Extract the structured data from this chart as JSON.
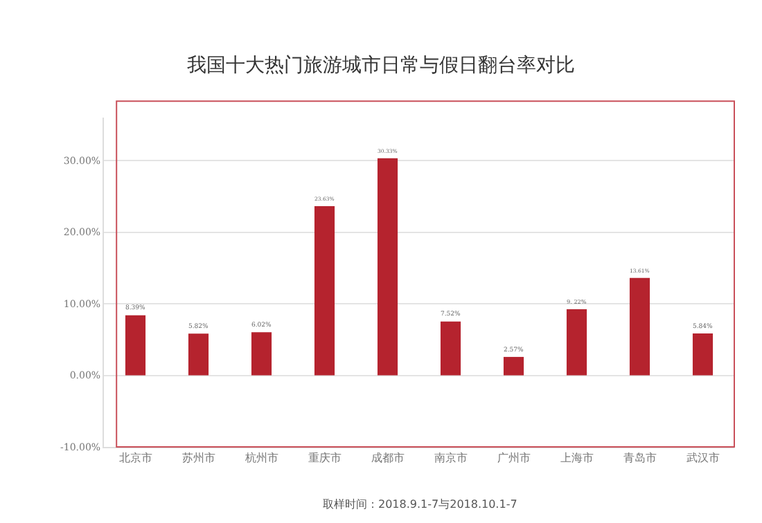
{
  "chart_data": {
    "type": "bar",
    "title": "我国十大热门旅游城市日常与假日翻台率对比",
    "categories": [
      "北京市",
      "苏州市",
      "杭州市",
      "重庆市",
      "成都市",
      "南京市",
      "广州市",
      "上海市",
      "青岛市",
      "武汉市"
    ],
    "values": [
      8.39,
      5.82,
      6.02,
      23.63,
      30.33,
      7.52,
      2.57,
      9.22,
      13.61,
      5.84
    ],
    "value_labels": [
      "8.39%",
      "5.82%",
      "6.02%",
      "23.63%",
      "30.33%",
      "7.52%",
      "2.57%",
      "9. 22%",
      "13.61%",
      "5.84%"
    ],
    "color": "#b5232e",
    "ylim": [
      -10,
      36
    ],
    "yticks": [
      {
        "value": -10,
        "label": "-10.00%"
      },
      {
        "value": 0,
        "label": "0.00%"
      },
      {
        "value": 10,
        "label": "10.00%"
      },
      {
        "value": 20,
        "label": "20.00%"
      },
      {
        "value": 30,
        "label": "30.00%"
      }
    ],
    "grid": "y",
    "annotations": [
      "取样时间：2018.9.1-7与2018.10.1-7"
    ]
  }
}
